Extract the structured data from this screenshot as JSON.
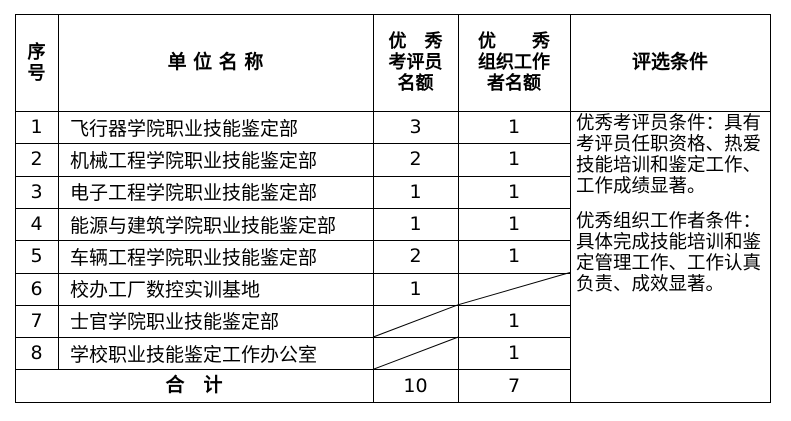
{
  "headers": {
    "seq": "序\n号",
    "unit": "单 位 名 称",
    "examiner": "优　秀\n考评员\n名额",
    "organizer": "优　　秀\n组织工作\n者名额",
    "criteria": "评选条件"
  },
  "rows": [
    {
      "seq": "1",
      "unit": "飞行器学院职业技能鉴定部",
      "examiner": "3",
      "organizer": "1"
    },
    {
      "seq": "2",
      "unit": "机械工程学院职业技能鉴定部",
      "examiner": "2",
      "organizer": "1"
    },
    {
      "seq": "3",
      "unit": "电子工程学院职业技能鉴定部",
      "examiner": "1",
      "organizer": "1"
    },
    {
      "seq": "4",
      "unit": "能源与建筑学院职业技能鉴定部",
      "examiner": "1",
      "organizer": "1"
    },
    {
      "seq": "5",
      "unit": "车辆工程学院职业技能鉴定部",
      "examiner": "2",
      "organizer": "1"
    },
    {
      "seq": "6",
      "unit": "校办工厂数控实训基地",
      "examiner": "1",
      "organizer": ""
    },
    {
      "seq": "7",
      "unit": "士官学院职业技能鉴定部",
      "examiner": "",
      "organizer": "1"
    },
    {
      "seq": "8",
      "unit": "学校职业技能鉴定工作办公室",
      "examiner": "",
      "organizer": "1"
    }
  ],
  "total": {
    "label": "合　计",
    "examiner": "10",
    "organizer": "7"
  },
  "criteria": {
    "examiner": "优秀考评员条件：具有考评员任职资格、热爱技能培训和鉴定工作、工作成绩显著。",
    "organizer": "优秀组织工作者条件：具体完成技能培训和鉴定管理工作、工作认真负责、成效显著。"
  }
}
